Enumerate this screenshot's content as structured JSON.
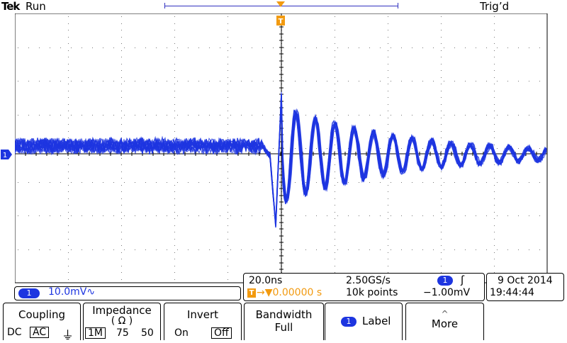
{
  "header": {
    "brand": "Tek",
    "run_state": "Run",
    "trigger_state": "Trig’d",
    "trigger_marker": "T"
  },
  "channel1": {
    "badge": "1",
    "scale": "10.0mV",
    "coupling_symbol": "∿",
    "color": "#1d35e0"
  },
  "horizontal": {
    "timebase": "20.0ns",
    "sample_rate": "2.50GS/s",
    "trigger_position_badge": "T",
    "trigger_position": "→▼0.00000 s",
    "record_length": "10k points"
  },
  "trigger": {
    "source_badge": "1",
    "slope_symbol": "ʃ",
    "level": "−1.00mV",
    "color": "#f29a10"
  },
  "datetime": {
    "date": "9 Oct  2014",
    "time": "19:44:44"
  },
  "menu": {
    "coupling": {
      "title": "Coupling",
      "options": [
        "DC",
        "AC"
      ],
      "selected": "AC",
      "gnd_symbol": "⏚"
    },
    "impedance": {
      "title": "Impedance",
      "unit": "( Ω )",
      "options": [
        "1M",
        "75",
        "50"
      ],
      "selected": "1M"
    },
    "invert": {
      "title": "Invert",
      "options": [
        "On",
        "Off"
      ],
      "selected": "Off"
    },
    "bandwidth": {
      "title": "Bandwidth",
      "value": "Full"
    },
    "label": {
      "badge": "1",
      "title": "Label"
    },
    "more": {
      "title": "More",
      "arrow": "^"
    }
  }
}
